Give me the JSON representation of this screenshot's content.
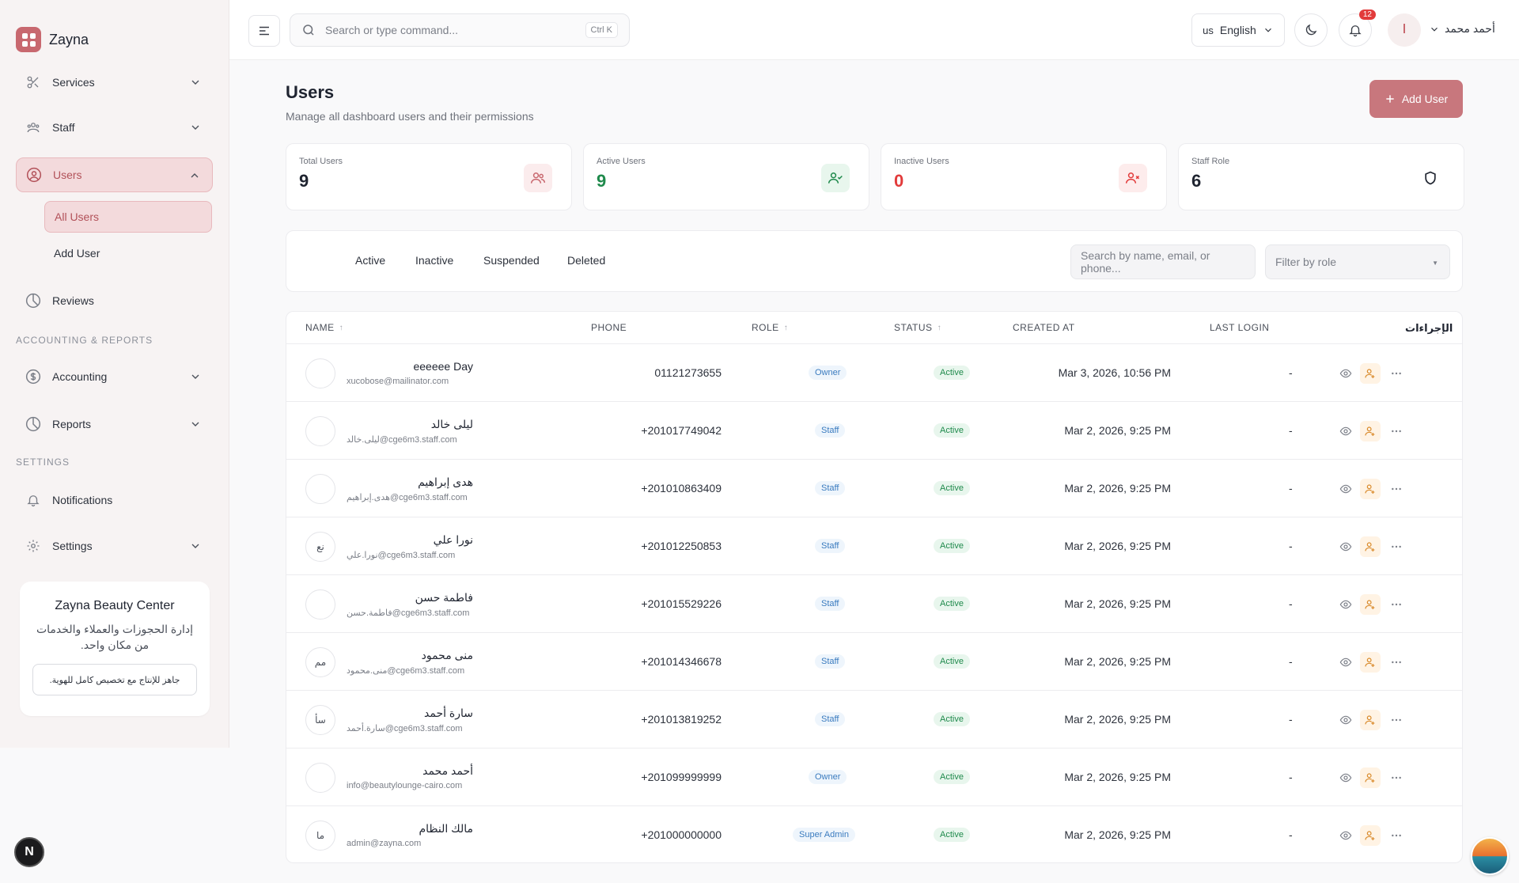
{
  "brand": {
    "name": "Zayna"
  },
  "sidebar": {
    "items": [
      {
        "label": "Services"
      },
      {
        "label": "Staff"
      },
      {
        "label": "Users"
      },
      {
        "label": "All Users"
      },
      {
        "label": "Add User"
      },
      {
        "label": "Reviews"
      },
      {
        "label": "Accounting"
      },
      {
        "label": "Reports"
      },
      {
        "label": "Notifications"
      },
      {
        "label": "Settings"
      }
    ],
    "sections": {
      "accounting": "ACCOUNTING & REPORTS",
      "settings": "SETTINGS"
    },
    "promo": {
      "title": "Zayna Beauty Center",
      "text": "إدارة الحجوزات والعملاء والخدمات من مكان واحد.",
      "chip": "جاهز للإنتاج مع تخصيص كامل للهوية."
    },
    "badge": "N"
  },
  "topbar": {
    "search_placeholder": "Search or type command...",
    "shortcut": "Ctrl K",
    "lang_code": "us",
    "lang_label": "English",
    "notif_count": "12",
    "user_name": "أحمد محمد"
  },
  "page": {
    "title": "Users",
    "subtitle": "Manage all dashboard users and their permissions",
    "add_label": "Add User"
  },
  "stats": [
    {
      "label": "Total Users",
      "value": "9",
      "color": "#1f2430"
    },
    {
      "label": "Active Users",
      "value": "9",
      "color": "#1f8a4c"
    },
    {
      "label": "Inactive Users",
      "value": "0",
      "color": "#e23b3b"
    },
    {
      "label": "Staff Role",
      "value": "6",
      "color": "#1f2430"
    }
  ],
  "filters": {
    "tabs": [
      "Active",
      "Inactive",
      "Suspended",
      "Deleted"
    ],
    "search_placeholder": "Search by name, email, or phone...",
    "role_placeholder": "Filter by role"
  },
  "table": {
    "headers": {
      "name": "NAME",
      "phone": "PHONE",
      "role": "ROLE",
      "status": "STATUS",
      "created": "CREATED AT",
      "last_login": "LAST LOGIN",
      "actions": "الإجراءات"
    },
    "rows": [
      {
        "initials": "",
        "name": "eeeeee Day",
        "email": "xucobose@mailinator.com",
        "phone": "01121273655",
        "role": "Owner",
        "status": "Active",
        "created": "Mar 3, 2026, 10:56 PM",
        "last_login": "-"
      },
      {
        "initials": "",
        "name": "ليلى خالد",
        "email": "ليلى.خالد@cge6m3.staff.com",
        "phone": "+201017749042",
        "role": "Staff",
        "status": "Active",
        "created": "Mar 2, 2026, 9:25 PM",
        "last_login": "-"
      },
      {
        "initials": "",
        "name": "هدى إبراهيم",
        "email": "هدى.إبراهيم@cge6m3.staff.com",
        "phone": "+201010863409",
        "role": "Staff",
        "status": "Active",
        "created": "Mar 2, 2026, 9:25 PM",
        "last_login": "-"
      },
      {
        "initials": "نع",
        "name": "نورا علي",
        "email": "نورا.علي@cge6m3.staff.com",
        "phone": "+201012250853",
        "role": "Staff",
        "status": "Active",
        "created": "Mar 2, 2026, 9:25 PM",
        "last_login": "-"
      },
      {
        "initials": "",
        "name": "فاطمة حسن",
        "email": "فاطمة.حسن@cge6m3.staff.com",
        "phone": "+201015529226",
        "role": "Staff",
        "status": "Active",
        "created": "Mar 2, 2026, 9:25 PM",
        "last_login": "-"
      },
      {
        "initials": "مم",
        "name": "منى محمود",
        "email": "منى.محمود@cge6m3.staff.com",
        "phone": "+201014346678",
        "role": "Staff",
        "status": "Active",
        "created": "Mar 2, 2026, 9:25 PM",
        "last_login": "-"
      },
      {
        "initials": "سأ",
        "name": "سارة أحمد",
        "email": "سارة.أحمد@cge6m3.staff.com",
        "phone": "+201013819252",
        "role": "Staff",
        "status": "Active",
        "created": "Mar 2, 2026, 9:25 PM",
        "last_login": "-"
      },
      {
        "initials": "",
        "name": "أحمد محمد",
        "email": "info@beautylounge-cairo.com",
        "phone": "+201099999999",
        "role": "Owner",
        "status": "Active",
        "created": "Mar 2, 2026, 9:25 PM",
        "last_login": "-"
      },
      {
        "initials": "ما",
        "name": "مالك النظام",
        "email": "admin@zayna.com",
        "phone": "+201000000000",
        "role": "Super Admin",
        "status": "Active",
        "created": "Mar 2, 2026, 9:25 PM",
        "last_login": "-"
      }
    ]
  },
  "colors": {
    "accent": "#c8686f",
    "active_green": "#1f8a4c",
    "inactive_red": "#e23b3b"
  }
}
